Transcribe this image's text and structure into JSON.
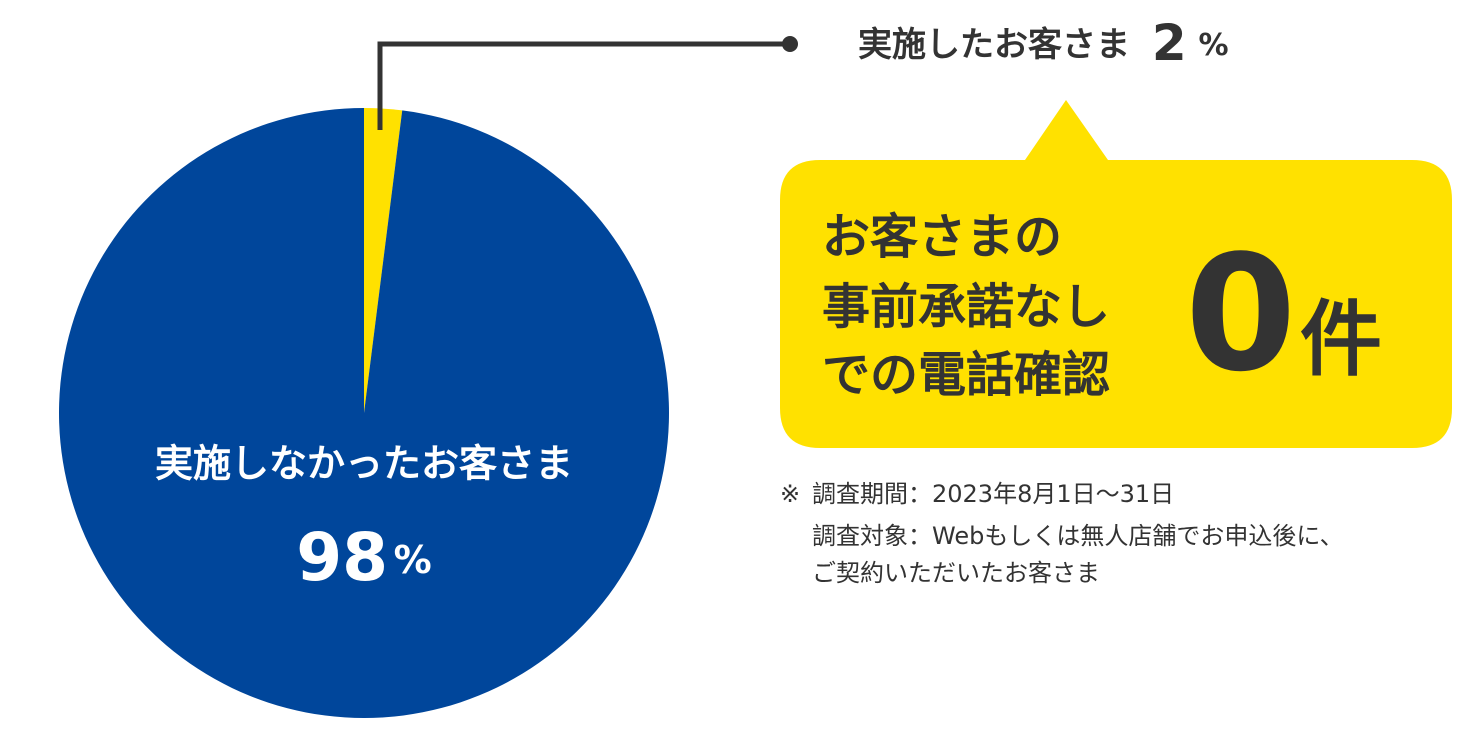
{
  "chart_data": {
    "type": "pie",
    "categories": [
      "実施したお客さま",
      "実施しなかったお客さま"
    ],
    "values": [
      2,
      98
    ],
    "unit": "%",
    "colors": [
      "#ffe100",
      "#00469b"
    ],
    "callout": {
      "lines": [
        "お客さまの",
        "事前承諾なし",
        "での電話確認"
      ],
      "count": 0,
      "count_unit": "件"
    },
    "note": {
      "mark": "※",
      "lines": [
        "調査期間：2023年8月1日〜31日",
        "調査対象：Webもしくは無人店舗でお申込後に、",
        "ご契約いただいたお客さま"
      ]
    }
  }
}
